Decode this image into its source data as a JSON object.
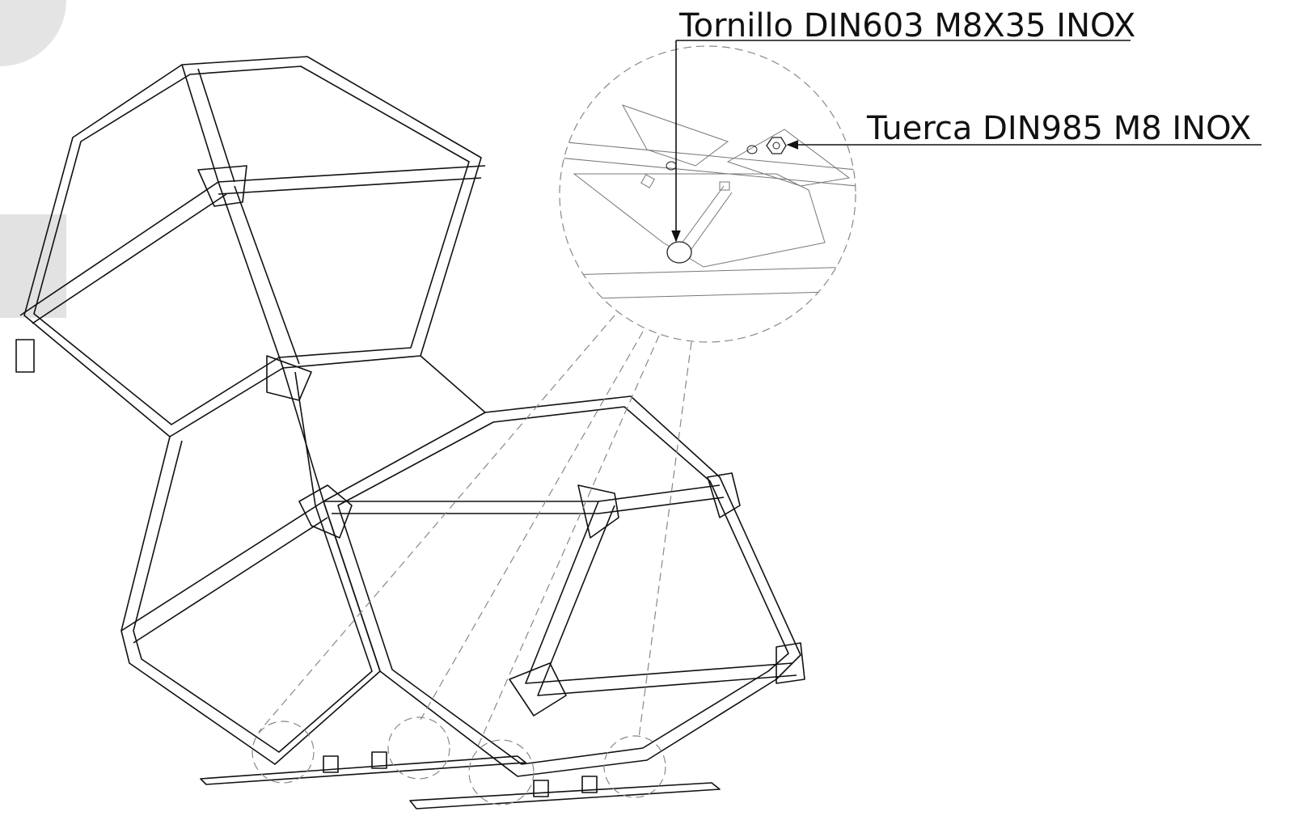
{
  "callouts": [
    {
      "label": "Tornillo DIN603 M8X35 INOX"
    },
    {
      "label": "Tuerca DIN985 M8 INOX"
    }
  ]
}
